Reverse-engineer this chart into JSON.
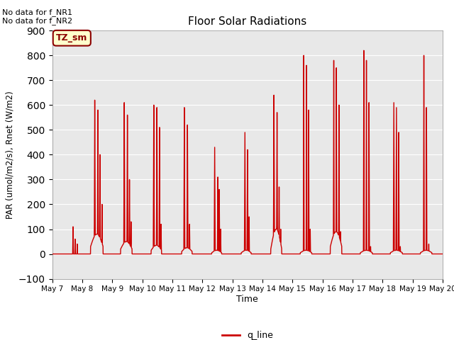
{
  "title": "Floor Solar Radiations",
  "ylabel": "PAR (umol/m2/s), Rnet (W/m2)",
  "xlabel": "Time",
  "ylim": [
    -100,
    900
  ],
  "yticks": [
    -100,
    0,
    100,
    200,
    300,
    400,
    500,
    600,
    700,
    800,
    900
  ],
  "line_color": "#cc0000",
  "line_width": 1.0,
  "legend_label": "q_line",
  "annotation_text1": "No data for f_NR1",
  "annotation_text2": "No data for f_NR2",
  "tz_label": "TZ_sm",
  "bg_color": "#e8e8e8",
  "fig_bg_color": "#ffffff",
  "x_tick_labels": [
    "May 7",
    "May 8",
    "May 9",
    "May 10",
    "May 11",
    "May 12",
    "May 13",
    "May 14",
    "May 15",
    "May 16",
    "May 17",
    "May 18",
    "May 19",
    "May 20"
  ],
  "x_tick_positions": [
    0,
    288,
    576,
    864,
    1152,
    1440,
    1728,
    2016,
    2304,
    2592,
    2880,
    3168,
    3456,
    3744
  ],
  "xlim": [
    0,
    3744
  ],
  "n_points_per_day": 288
}
